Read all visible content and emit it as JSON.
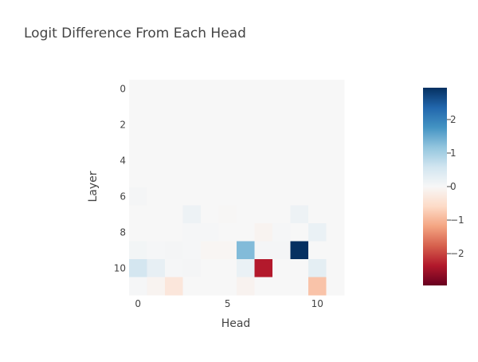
{
  "chart_data": {
    "type": "heatmap",
    "title": "Logit Difference From Each Head",
    "xlabel": "Head",
    "ylabel": "Layer",
    "x_ticks": [
      0,
      5,
      10
    ],
    "y_ticks": [
      0,
      2,
      4,
      6,
      8,
      10
    ],
    "x": [
      0,
      1,
      2,
      3,
      4,
      5,
      6,
      7,
      8,
      9,
      10,
      11
    ],
    "y": [
      0,
      1,
      2,
      3,
      4,
      5,
      6,
      7,
      8,
      9,
      10,
      11
    ],
    "colorscale": "RdBu",
    "zmin": -2.95,
    "zmax": 2.95,
    "colorbar_ticks": [
      2,
      1,
      0,
      -1,
      -2
    ],
    "z": [
      [
        0,
        0,
        0,
        0,
        0,
        0,
        0,
        0,
        0,
        0,
        0,
        0
      ],
      [
        0,
        0,
        0,
        0,
        0,
        0,
        0,
        0,
        0,
        0,
        0,
        0
      ],
      [
        0,
        0,
        0,
        0,
        0,
        0,
        0,
        0,
        0,
        0,
        0,
        0
      ],
      [
        0,
        0,
        0,
        0,
        0,
        0,
        0,
        0,
        0,
        0,
        0,
        0
      ],
      [
        0,
        0,
        0,
        0,
        0,
        0,
        0,
        0,
        0,
        0,
        0,
        0
      ],
      [
        0,
        0,
        0,
        0,
        0,
        0,
        0,
        0,
        0,
        0,
        0,
        0
      ],
      [
        0.05,
        0,
        0,
        0,
        0,
        0,
        0,
        0,
        0,
        0,
        0,
        0
      ],
      [
        0,
        0,
        0,
        0.15,
        0,
        -0.03,
        0,
        0,
        0,
        0.15,
        0,
        0
      ],
      [
        0,
        0,
        0,
        0.03,
        0.03,
        0,
        0,
        -0.08,
        0.03,
        0,
        0.2,
        0
      ],
      [
        0.07,
        0.03,
        0.05,
        0.03,
        -0.05,
        -0.05,
        1.3,
        0.05,
        0.05,
        2.95,
        0,
        0
      ],
      [
        0.55,
        0.25,
        0.03,
        0.05,
        0,
        0,
        0.2,
        -2.35,
        0,
        0,
        0.3,
        0
      ],
      [
        0.03,
        -0.08,
        -0.35,
        0,
        0,
        0,
        -0.1,
        0,
        0,
        0,
        -0.85,
        0
      ]
    ]
  }
}
